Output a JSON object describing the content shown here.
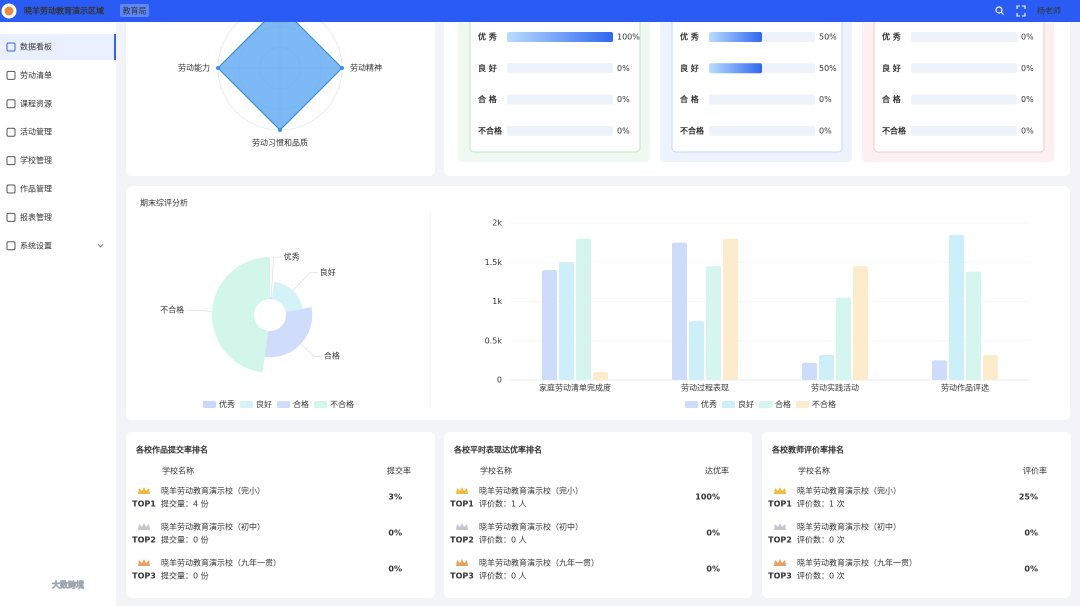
{
  "header": {
    "title": "晓羊劳动教育演示区域",
    "badge": "教育局",
    "user": "杨老师"
  },
  "sidebar": {
    "items": [
      "数据看板",
      "劳动清单",
      "课程资源",
      "活动管理",
      "学校管理",
      "作品管理",
      "报表管理",
      "系统设置"
    ]
  },
  "grade_panels": [
    {
      "rows": [
        {
          "label": "优 秀",
          "value": 100,
          "value_label": "100%"
        },
        {
          "label": "良 好",
          "value": 0,
          "value_label": "0%"
        },
        {
          "label": "合 格",
          "value": 0,
          "value_label": "0%"
        },
        {
          "label": "不合格",
          "value": 0,
          "value_label": "0%"
        }
      ]
    },
    {
      "rows": [
        {
          "label": "优 秀",
          "value": 50,
          "value_label": "50%"
        },
        {
          "label": "良 好",
          "value": 50,
          "value_label": "50%"
        },
        {
          "label": "合 格",
          "value": 0,
          "value_label": "0%"
        },
        {
          "label": "不合格",
          "value": 0,
          "value_label": "0%"
        }
      ]
    },
    {
      "rows": [
        {
          "label": "优 秀",
          "value": 0,
          "value_label": "0%"
        },
        {
          "label": "良 好",
          "value": 0,
          "value_label": "0%"
        },
        {
          "label": "合 格",
          "value": 0,
          "value_label": "0%"
        },
        {
          "label": "不合格",
          "value": 0,
          "value_label": "0%"
        }
      ]
    }
  ],
  "chart_data": [
    {
      "type": "radar",
      "categories": [
        null,
        "劳动精神",
        "劳动习惯和品质",
        "劳动能力"
      ],
      "values": [
        100,
        100,
        100,
        100
      ],
      "ylim": [
        0,
        100
      ],
      "color": "#5ba8f2"
    },
    {
      "type": "pie",
      "title": "期末综评分析",
      "rose": true,
      "categories": [
        "优秀",
        "良好",
        "合格",
        "不合格"
      ],
      "values": [
        2,
        20,
        30,
        48
      ],
      "colors": [
        "#c9d9fb",
        "#d3f3f8",
        "#cfdcfb",
        "#d2f6e9"
      ]
    },
    {
      "type": "bar",
      "categories": [
        "家庭劳动清单完成度",
        "劳动过程表现",
        "劳动实践活动",
        "劳动作品评选"
      ],
      "series": [
        {
          "name": "优秀",
          "color": "#cddcfb",
          "values": [
            1400,
            1750,
            220,
            250
          ]
        },
        {
          "name": "良好",
          "color": "#cdeff9",
          "values": [
            1500,
            750,
            320,
            1850
          ]
        },
        {
          "name": "合格",
          "color": "#d4f6ef",
          "values": [
            1800,
            1450,
            1050,
            1380
          ]
        },
        {
          "name": "不合格",
          "color": "#fdeccb",
          "values": [
            100,
            1800,
            1450,
            320
          ]
        }
      ],
      "ylim": [
        0,
        2000
      ],
      "yticks": [
        0,
        {
          "value": 500,
          "label": "0.5k"
        },
        {
          "value": 1000,
          "label": "1k"
        },
        {
          "value": 1500,
          "label": "1.5k"
        },
        {
          "value": 2000,
          "label": "2k"
        }
      ]
    }
  ],
  "rankings": [
    {
      "title": "各校作品提交率排名",
      "columns": [
        "学校名称",
        "提交率"
      ],
      "rows": [
        {
          "rank": "TOP1",
          "school": "晓羊劳动教育演示校（完小）",
          "detail": "提交量：4 份",
          "rate": "3%"
        },
        {
          "rank": "TOP2",
          "school": "晓羊劳动教育演示校（初中）",
          "detail": "提交量：0 份",
          "rate": "0%"
        },
        {
          "rank": "TOP3",
          "school": "晓羊劳动教育演示校（九年一贯）",
          "detail": "提交量：0 份",
          "rate": "0%"
        }
      ]
    },
    {
      "title": "各校平时表现达优率排名",
      "columns": [
        "学校名称",
        "达优率"
      ],
      "rows": [
        {
          "rank": "TOP1",
          "school": "晓羊劳动教育演示校（完小）",
          "detail": "评价数：1 人",
          "rate": "100%"
        },
        {
          "rank": "TOP2",
          "school": "晓羊劳动教育演示校（初中）",
          "detail": "评价数：0 人",
          "rate": "0%"
        },
        {
          "rank": "TOP3",
          "school": "晓羊劳动教育演示校（九年一贯）",
          "detail": "评价数：0 人",
          "rate": "0%"
        }
      ]
    },
    {
      "title": "各校教师评价率排名",
      "columns": [
        "学校名称",
        "评价率"
      ],
      "rows": [
        {
          "rank": "TOP1",
          "school": "晓羊劳动教育演示校（完小）",
          "detail": "评价数：1 次",
          "rate": "25%"
        },
        {
          "rank": "TOP2",
          "school": "晓羊劳动教育演示校（初中）",
          "detail": "评价数：0 次",
          "rate": "0%"
        },
        {
          "rank": "TOP3",
          "school": "晓羊劳动教育演示校（九年一贯）",
          "detail": "评价数：0 次",
          "rate": "0%"
        }
      ]
    }
  ],
  "watermark": "大数跨境"
}
